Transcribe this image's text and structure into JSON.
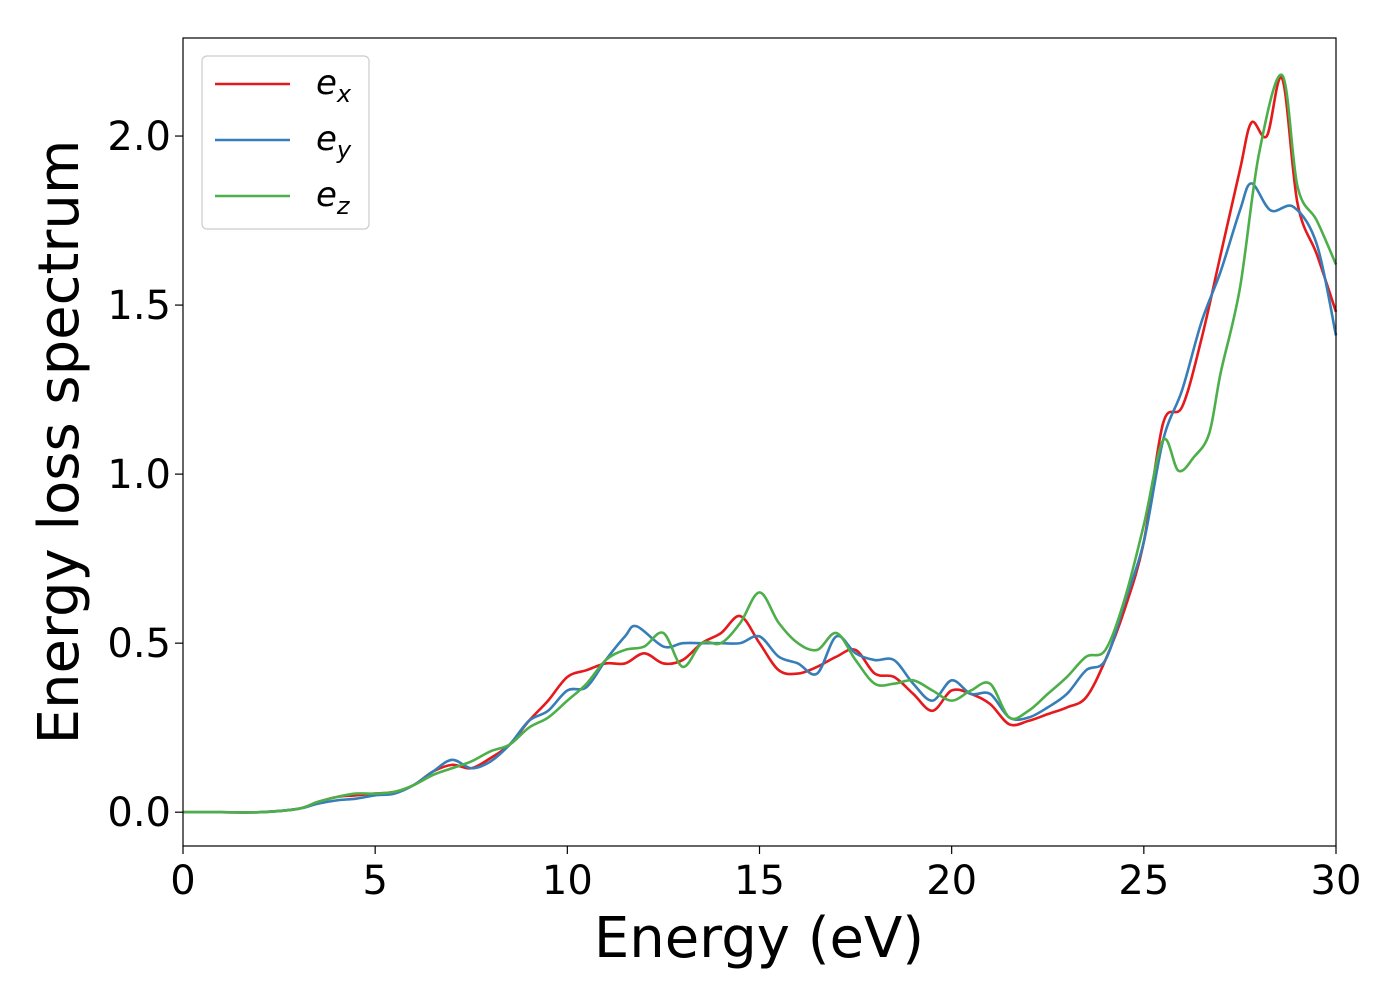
{
  "chart_data": {
    "type": "line",
    "title": "",
    "xlabel": "Energy (eV)",
    "ylabel": "Energy loss spectrum",
    "xlim": [
      0,
      30
    ],
    "ylim": [
      -0.1,
      2.29
    ],
    "xticks": [
      0,
      5,
      10,
      15,
      20,
      25,
      30
    ],
    "xtick_labels": [
      "0",
      "5",
      "10",
      "15",
      "20",
      "25",
      "30"
    ],
    "yticks": [
      0.0,
      0.5,
      1.0,
      1.5,
      2.0
    ],
    "ytick_labels": [
      "0.0",
      "0.5",
      "1.0",
      "1.5",
      "2.0"
    ],
    "grid": false,
    "legend_position": "top-left",
    "series": [
      {
        "name": "e_x",
        "legend_base": "e",
        "legend_sub": "x",
        "color": "#e41a1c",
        "x": [
          0,
          1,
          2,
          3,
          3.5,
          4,
          4.5,
          5,
          5.5,
          6,
          6.5,
          7,
          7.5,
          8,
          8.5,
          9,
          9.5,
          10,
          10.5,
          11,
          11.5,
          12,
          12.5,
          13,
          13.5,
          14,
          14.5,
          15,
          15.5,
          16,
          16.5,
          17,
          17.5,
          18,
          18.5,
          19,
          19.5,
          20,
          20.5,
          21,
          21.5,
          22,
          22.5,
          23,
          23.5,
          24,
          24.5,
          25,
          25.5,
          26,
          26.5,
          27,
          27.5,
          27.8,
          28.2,
          28.6,
          29,
          29.5,
          30
        ],
        "y": [
          0,
          0,
          0,
          0.01,
          0.03,
          0.045,
          0.05,
          0.055,
          0.06,
          0.08,
          0.12,
          0.14,
          0.13,
          0.16,
          0.2,
          0.27,
          0.33,
          0.4,
          0.42,
          0.44,
          0.44,
          0.47,
          0.44,
          0.45,
          0.5,
          0.53,
          0.58,
          0.5,
          0.42,
          0.41,
          0.43,
          0.46,
          0.48,
          0.41,
          0.4,
          0.35,
          0.3,
          0.36,
          0.35,
          0.32,
          0.26,
          0.27,
          0.29,
          0.31,
          0.34,
          0.45,
          0.6,
          0.8,
          1.15,
          1.2,
          1.4,
          1.65,
          1.9,
          2.04,
          2.0,
          2.17,
          1.8,
          1.65,
          1.48
        ]
      },
      {
        "name": "e_y",
        "legend_base": "e",
        "legend_sub": "y",
        "color": "#377eb8",
        "x": [
          0,
          1,
          2,
          3,
          3.5,
          4,
          4.5,
          5,
          5.5,
          6,
          6.5,
          7,
          7.5,
          8,
          8.5,
          9,
          9.5,
          10,
          10.5,
          11,
          11.5,
          11.8,
          12.5,
          13,
          13.5,
          14,
          14.5,
          15,
          15.5,
          16,
          16.5,
          17,
          17.5,
          18,
          18.5,
          19,
          19.5,
          20,
          20.5,
          21,
          21.5,
          22,
          22.5,
          23,
          23.5,
          24,
          24.5,
          25,
          25.5,
          26,
          26.5,
          27,
          27.5,
          27.8,
          28.3,
          28.9,
          29.5,
          30
        ],
        "y": [
          0,
          0,
          0,
          0.01,
          0.025,
          0.035,
          0.04,
          0.05,
          0.055,
          0.08,
          0.12,
          0.155,
          0.13,
          0.15,
          0.2,
          0.27,
          0.3,
          0.36,
          0.37,
          0.45,
          0.52,
          0.55,
          0.49,
          0.5,
          0.5,
          0.5,
          0.5,
          0.52,
          0.46,
          0.44,
          0.41,
          0.52,
          0.47,
          0.45,
          0.45,
          0.38,
          0.33,
          0.39,
          0.35,
          0.35,
          0.28,
          0.28,
          0.31,
          0.35,
          0.42,
          0.45,
          0.62,
          0.8,
          1.1,
          1.25,
          1.45,
          1.6,
          1.78,
          1.86,
          1.78,
          1.79,
          1.68,
          1.41
        ]
      },
      {
        "name": "e_z",
        "legend_base": "e",
        "legend_sub": "z",
        "color": "#4daf4a",
        "x": [
          0,
          1,
          2,
          3,
          3.5,
          4,
          4.5,
          5,
          5.5,
          6,
          6.5,
          7,
          7.5,
          8,
          8.5,
          9,
          9.5,
          10,
          10.5,
          11,
          11.5,
          12,
          12.5,
          13,
          13.5,
          14,
          14.5,
          15,
          15.5,
          16,
          16.5,
          17,
          17.5,
          18,
          18.5,
          19,
          19.5,
          20,
          20.5,
          21,
          21.5,
          22,
          22.5,
          23,
          23.5,
          24,
          24.5,
          25,
          25.5,
          25.9,
          26.3,
          26.7,
          27,
          27.5,
          28,
          28.6,
          29,
          29.5,
          30
        ],
        "y": [
          0,
          0,
          0,
          0.01,
          0.03,
          0.045,
          0.055,
          0.055,
          0.06,
          0.08,
          0.11,
          0.13,
          0.15,
          0.18,
          0.2,
          0.25,
          0.28,
          0.33,
          0.38,
          0.45,
          0.48,
          0.49,
          0.53,
          0.43,
          0.5,
          0.5,
          0.56,
          0.65,
          0.56,
          0.5,
          0.48,
          0.53,
          0.45,
          0.38,
          0.38,
          0.39,
          0.36,
          0.33,
          0.36,
          0.38,
          0.28,
          0.3,
          0.35,
          0.4,
          0.46,
          0.48,
          0.63,
          0.85,
          1.1,
          1.01,
          1.05,
          1.12,
          1.3,
          1.55,
          1.95,
          2.18,
          1.85,
          1.75,
          1.62
        ]
      }
    ]
  }
}
